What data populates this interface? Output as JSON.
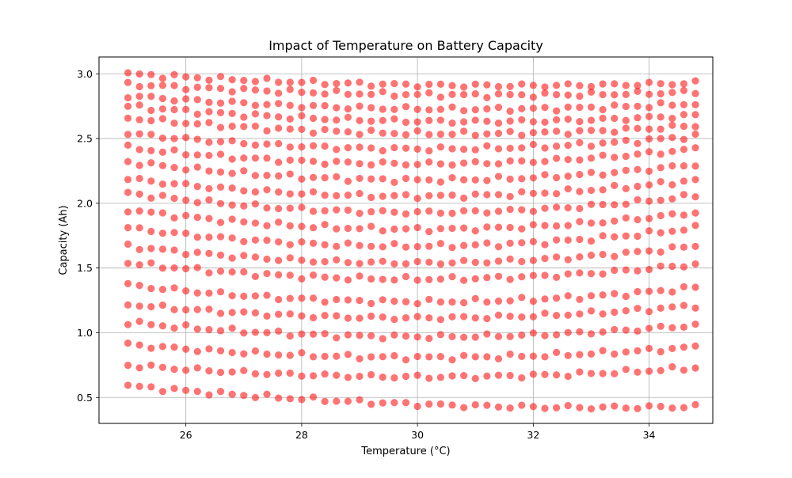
{
  "chart_data": {
    "type": "scatter",
    "title": "Impact of Temperature on Battery Capacity",
    "xlabel": "Temperature (°C)",
    "ylabel": "Capacity (Ah)",
    "xlim": [
      24.5,
      35.1
    ],
    "ylim": [
      0.3,
      3.13
    ],
    "x_ticks": [
      26,
      28,
      30,
      32,
      34
    ],
    "y_ticks": [
      0.5,
      1.0,
      1.5,
      2.0,
      2.5,
      3.0
    ],
    "x_tick_labels": [
      "26",
      "28",
      "30",
      "32",
      "34"
    ],
    "y_tick_labels": [
      "0.5",
      "1.0",
      "1.5",
      "2.0",
      "2.5",
      "3.0"
    ],
    "grid": true,
    "marker_color": "#ff0000",
    "marker_alpha": 0.55,
    "series": [
      {
        "x_start": 25.0,
        "x_step": 0.2,
        "x_count": 50,
        "row_start_values": [
          3.0,
          2.92,
          2.83,
          2.75,
          2.66,
          2.54,
          2.43,
          2.32,
          2.19,
          2.08,
          1.95,
          1.81,
          1.67,
          1.54,
          1.37,
          1.22,
          1.08,
          0.91,
          0.75,
          0.59
        ],
        "row_end_values": [
          2.93,
          2.86,
          2.77,
          2.68,
          2.6,
          2.52,
          2.42,
          2.3,
          2.18,
          2.06,
          1.93,
          1.81,
          1.67,
          1.53,
          1.35,
          1.21,
          1.06,
          0.89,
          0.73,
          0.43
        ],
        "row_mid_dip": [
          0.05,
          0.05,
          0.07,
          0.08,
          0.09,
          0.11,
          0.12,
          0.13,
          0.13,
          0.14,
          0.14,
          0.14,
          0.13,
          0.12,
          0.12,
          0.1,
          0.1,
          0.09,
          0.08,
          0.06
        ]
      }
    ]
  }
}
